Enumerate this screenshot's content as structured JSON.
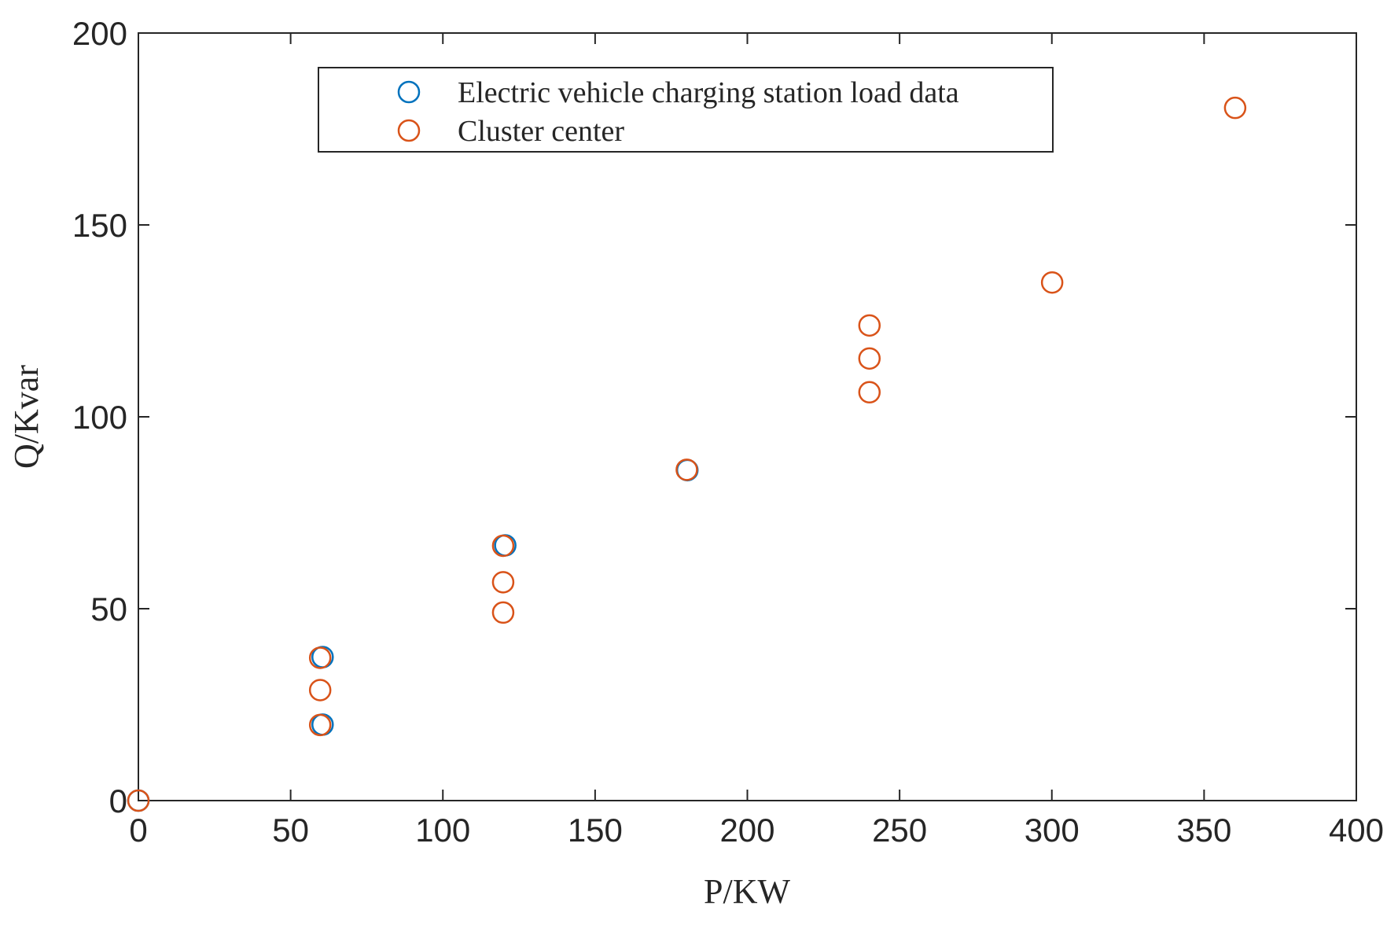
{
  "chart_data": {
    "type": "scatter",
    "x_label": "P/KW",
    "y_label": "Q/Kvar",
    "xlim": [
      0,
      400
    ],
    "ylim": [
      0,
      200
    ],
    "xticks": [
      0,
      50,
      100,
      150,
      200,
      250,
      300,
      350,
      400
    ],
    "yticks": [
      0,
      50,
      100,
      150,
      200
    ],
    "legend": "upper center",
    "series": [
      {
        "name": "Electric vehicle charging station load data",
        "color": "#0072bd",
        "x": [
          0,
          60.5,
          60.5,
          120.5,
          180.3
        ],
        "values": [
          0,
          37.4,
          19.8,
          66.5,
          86.1
        ]
      },
      {
        "name": "Cluster center",
        "color": "#d95319",
        "x": [
          0,
          59.7,
          59.7,
          59.7,
          119.8,
          119.8,
          119.8,
          180.1,
          240.1,
          240.1,
          240.1,
          300.1,
          360.2
        ],
        "values": [
          0,
          37.2,
          28.8,
          19.7,
          66.4,
          56.9,
          49.0,
          86.2,
          123.8,
          115.2,
          106.4,
          135.0,
          180.5
        ]
      }
    ]
  }
}
